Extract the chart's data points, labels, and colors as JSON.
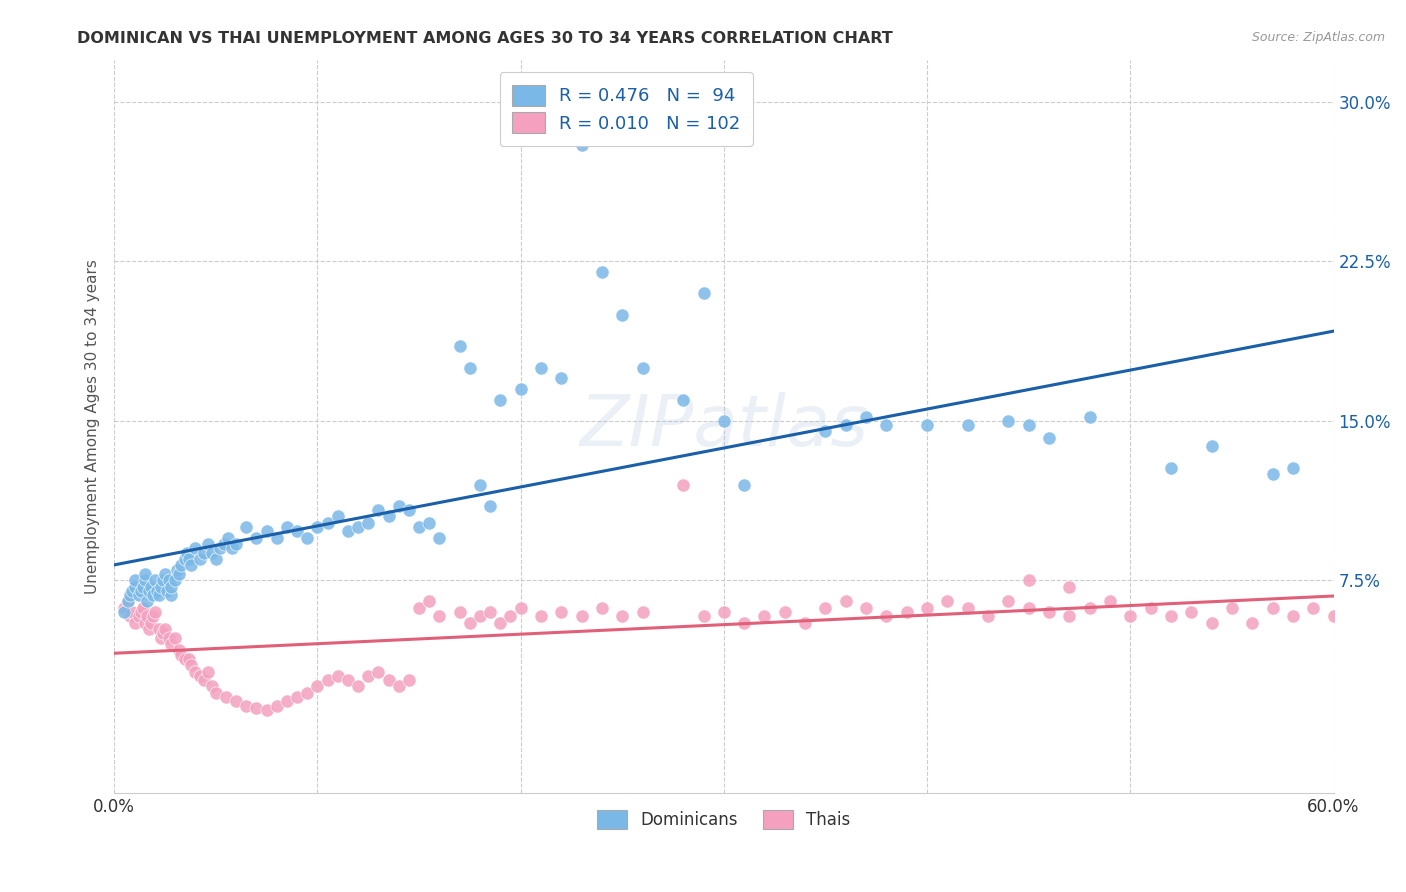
{
  "title": "DOMINICAN VS THAI UNEMPLOYMENT AMONG AGES 30 TO 34 YEARS CORRELATION CHART",
  "source": "Source: ZipAtlas.com",
  "ylabel": "Unemployment Among Ages 30 to 34 years",
  "xlim": [
    0.0,
    0.6
  ],
  "ylim": [
    -0.025,
    0.32
  ],
  "xticks": [
    0.0,
    0.1,
    0.2,
    0.3,
    0.4,
    0.5,
    0.6
  ],
  "xticklabels": [
    "0.0%",
    "",
    "",
    "",
    "",
    "",
    "60.0%"
  ],
  "yticks": [
    0.075,
    0.15,
    0.225,
    0.3
  ],
  "yticklabels": [
    "7.5%",
    "15.0%",
    "22.5%",
    "30.0%"
  ],
  "legend_labels": [
    "Dominicans",
    "Thais"
  ],
  "legend_R": [
    "R = 0.476",
    "R = 0.010"
  ],
  "legend_N": [
    "N =  94",
    "N = 102"
  ],
  "dominican_color": "#7ab8e8",
  "thai_color": "#f4a0be",
  "dominican_line_color": "#1a5fa8",
  "thai_line_color": "#e0607a",
  "grid_color": "#cccccc",
  "background_color": "#ffffff",
  "dominican_scatter_x": [
    0.005,
    0.007,
    0.008,
    0.009,
    0.01,
    0.01,
    0.012,
    0.013,
    0.014,
    0.015,
    0.015,
    0.016,
    0.017,
    0.018,
    0.019,
    0.02,
    0.021,
    0.022,
    0.023,
    0.024,
    0.025,
    0.026,
    0.027,
    0.028,
    0.028,
    0.03,
    0.031,
    0.032,
    0.033,
    0.035,
    0.036,
    0.037,
    0.038,
    0.04,
    0.042,
    0.044,
    0.046,
    0.048,
    0.05,
    0.052,
    0.054,
    0.056,
    0.058,
    0.06,
    0.065,
    0.07,
    0.075,
    0.08,
    0.085,
    0.09,
    0.095,
    0.1,
    0.105,
    0.11,
    0.115,
    0.12,
    0.125,
    0.13,
    0.135,
    0.14,
    0.145,
    0.15,
    0.155,
    0.16,
    0.17,
    0.175,
    0.18,
    0.185,
    0.19,
    0.2,
    0.21,
    0.22,
    0.23,
    0.24,
    0.25,
    0.26,
    0.28,
    0.29,
    0.3,
    0.31,
    0.35,
    0.36,
    0.37,
    0.38,
    0.4,
    0.42,
    0.44,
    0.45,
    0.46,
    0.48,
    0.52,
    0.54,
    0.57,
    0.58
  ],
  "dominican_scatter_y": [
    0.06,
    0.065,
    0.068,
    0.07,
    0.072,
    0.075,
    0.068,
    0.07,
    0.072,
    0.075,
    0.078,
    0.065,
    0.07,
    0.072,
    0.068,
    0.075,
    0.07,
    0.068,
    0.072,
    0.075,
    0.078,
    0.07,
    0.075,
    0.068,
    0.072,
    0.075,
    0.08,
    0.078,
    0.082,
    0.085,
    0.088,
    0.085,
    0.082,
    0.09,
    0.085,
    0.088,
    0.092,
    0.088,
    0.085,
    0.09,
    0.092,
    0.095,
    0.09,
    0.092,
    0.1,
    0.095,
    0.098,
    0.095,
    0.1,
    0.098,
    0.095,
    0.1,
    0.102,
    0.105,
    0.098,
    0.1,
    0.102,
    0.108,
    0.105,
    0.11,
    0.108,
    0.1,
    0.102,
    0.095,
    0.185,
    0.175,
    0.12,
    0.11,
    0.16,
    0.165,
    0.175,
    0.17,
    0.28,
    0.22,
    0.2,
    0.175,
    0.16,
    0.21,
    0.15,
    0.12,
    0.145,
    0.148,
    0.152,
    0.148,
    0.148,
    0.148,
    0.15,
    0.148,
    0.142,
    0.152,
    0.128,
    0.138,
    0.125,
    0.128
  ],
  "thai_scatter_x": [
    0.005,
    0.007,
    0.008,
    0.009,
    0.01,
    0.012,
    0.013,
    0.014,
    0.015,
    0.016,
    0.017,
    0.018,
    0.019,
    0.02,
    0.022,
    0.023,
    0.024,
    0.025,
    0.027,
    0.028,
    0.03,
    0.032,
    0.033,
    0.035,
    0.037,
    0.038,
    0.04,
    0.042,
    0.044,
    0.046,
    0.048,
    0.05,
    0.055,
    0.06,
    0.065,
    0.07,
    0.075,
    0.08,
    0.085,
    0.09,
    0.095,
    0.1,
    0.105,
    0.11,
    0.115,
    0.12,
    0.125,
    0.13,
    0.135,
    0.14,
    0.145,
    0.15,
    0.155,
    0.16,
    0.17,
    0.175,
    0.18,
    0.185,
    0.19,
    0.195,
    0.2,
    0.21,
    0.22,
    0.23,
    0.24,
    0.25,
    0.26,
    0.28,
    0.29,
    0.3,
    0.31,
    0.32,
    0.33,
    0.34,
    0.35,
    0.36,
    0.37,
    0.38,
    0.39,
    0.4,
    0.41,
    0.42,
    0.43,
    0.44,
    0.45,
    0.46,
    0.47,
    0.48,
    0.49,
    0.5,
    0.51,
    0.52,
    0.53,
    0.54,
    0.55,
    0.56,
    0.57,
    0.58,
    0.59,
    0.6,
    0.45,
    0.47
  ],
  "thai_scatter_y": [
    0.062,
    0.065,
    0.058,
    0.06,
    0.055,
    0.058,
    0.06,
    0.062,
    0.055,
    0.058,
    0.052,
    0.055,
    0.058,
    0.06,
    0.052,
    0.048,
    0.05,
    0.052,
    0.048,
    0.045,
    0.048,
    0.042,
    0.04,
    0.038,
    0.038,
    0.035,
    0.032,
    0.03,
    0.028,
    0.032,
    0.025,
    0.022,
    0.02,
    0.018,
    0.016,
    0.015,
    0.014,
    0.016,
    0.018,
    0.02,
    0.022,
    0.025,
    0.028,
    0.03,
    0.028,
    0.025,
    0.03,
    0.032,
    0.028,
    0.025,
    0.028,
    0.062,
    0.065,
    0.058,
    0.06,
    0.055,
    0.058,
    0.06,
    0.055,
    0.058,
    0.062,
    0.058,
    0.06,
    0.058,
    0.062,
    0.058,
    0.06,
    0.12,
    0.058,
    0.06,
    0.055,
    0.058,
    0.06,
    0.055,
    0.062,
    0.065,
    0.062,
    0.058,
    0.06,
    0.062,
    0.065,
    0.062,
    0.058,
    0.065,
    0.062,
    0.06,
    0.058,
    0.062,
    0.065,
    0.058,
    0.062,
    0.058,
    0.06,
    0.055,
    0.062,
    0.055,
    0.062,
    0.058,
    0.062,
    0.058,
    0.075,
    0.072
  ]
}
